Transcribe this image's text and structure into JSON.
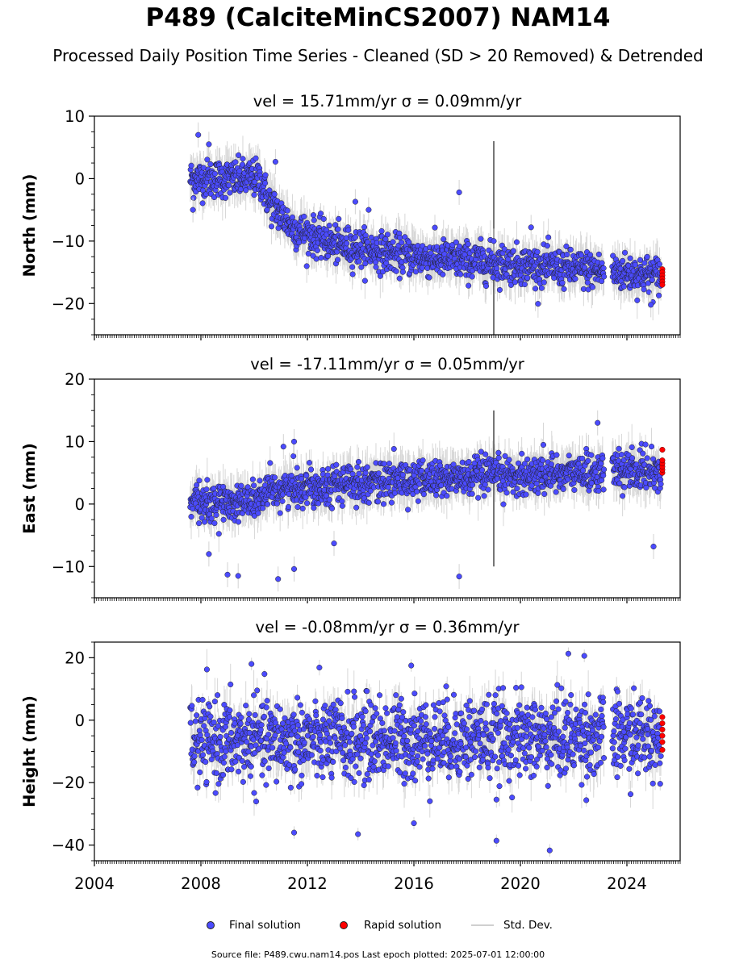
{
  "title": "P489 (CalciteMinCS2007) NAM14",
  "subtitle": "Processed Daily Position Time Series - Cleaned (SD > 20 Removed) & Detrended",
  "colors": {
    "final": "#4b4bff",
    "rapid": "#ff0000",
    "stddev": "#d3d3d3",
    "edge": "#222222"
  },
  "legend": {
    "final": "Final solution",
    "rapid": "Rapid solution",
    "std": "Std. Dev."
  },
  "footnote": "Source file: P489.cwu.nam14.pos  Last epoch plotted: 2025-07-01 12:00:00",
  "chart_data": [
    {
      "type": "scatter",
      "title": "vel = 15.71mm/yr   σ = 0.09mm/yr",
      "ylabel": "North (mm)",
      "xlim": [
        2004,
        2026
      ],
      "ylim": [
        -25,
        10
      ],
      "yticks": [
        10,
        0,
        -10,
        -20
      ],
      "xticks": [
        2004,
        2008,
        2012,
        2016,
        2020,
        2024
      ],
      "grid": false,
      "trend": [
        [
          2007.6,
          0
        ],
        [
          2010.2,
          0
        ],
        [
          2010.6,
          -4
        ],
        [
          2011.5,
          -8
        ],
        [
          2013,
          -10.5
        ],
        [
          2016,
          -12.5
        ],
        [
          2020,
          -13.8
        ],
        [
          2025.3,
          -15.5
        ]
      ],
      "scatter_sd": 1.5,
      "outliers": [
        [
          2007.9,
          7
        ],
        [
          2010.8,
          2.7
        ],
        [
          2013.8,
          -3.7
        ],
        [
          2014.3,
          -5
        ],
        [
          2017.7,
          -2.2
        ],
        [
          2019.0,
          -10
        ],
        [
          2020.4,
          -7.8
        ],
        [
          2024.9,
          -20.2
        ],
        [
          2008.3,
          5.5
        ],
        [
          2007.7,
          -5
        ]
      ],
      "rapid": {
        "x": 2025.33,
        "values": [
          -14.5,
          -15,
          -15.5,
          -16,
          -16.5,
          -17
        ]
      },
      "spike": {
        "x": 2019.0,
        "min": -25,
        "max": 6
      }
    },
    {
      "type": "scatter",
      "title": "vel = -17.11mm/yr   σ = 0.05mm/yr",
      "ylabel": "East (mm)",
      "xlim": [
        2004,
        2026
      ],
      "ylim": [
        -15,
        20
      ],
      "yticks": [
        20,
        10,
        0,
        -10
      ],
      "xticks": [
        2004,
        2008,
        2012,
        2016,
        2020,
        2024
      ],
      "grid": false,
      "trend": [
        [
          2007.6,
          0
        ],
        [
          2010,
          0.5
        ],
        [
          2011,
          2.5
        ],
        [
          2014,
          3.5
        ],
        [
          2018,
          4.2
        ],
        [
          2022,
          5
        ],
        [
          2025.3,
          5.5
        ]
      ],
      "scatter_sd": 1.5,
      "outliers": [
        [
          2008.3,
          -8
        ],
        [
          2009.0,
          -11.3
        ],
        [
          2009.4,
          -11.5
        ],
        [
          2010.9,
          -12
        ],
        [
          2011.5,
          -10.4
        ],
        [
          2013.0,
          -6.3
        ],
        [
          2017.7,
          -11.6
        ],
        [
          2022.9,
          13
        ],
        [
          2025.0,
          -6.8
        ],
        [
          2011.1,
          9.2
        ],
        [
          2011.5,
          10
        ]
      ],
      "rapid": {
        "x": 2025.33,
        "values": [
          5,
          5.5,
          6,
          6.5,
          7,
          8.7
        ]
      },
      "spike": {
        "x": 2019.0,
        "min": -10,
        "max": 15
      }
    },
    {
      "type": "scatter",
      "title": "vel = -0.08mm/yr   σ = 0.36mm/yr",
      "ylabel": "Height (mm)",
      "xlim": [
        2004,
        2026
      ],
      "ylim": [
        -45,
        25
      ],
      "yticks": [
        20,
        0,
        -20,
        -40
      ],
      "xticks": [
        2004,
        2008,
        2012,
        2016,
        2020,
        2024
      ],
      "xticklabels": [
        "2004",
        "2008",
        "2012",
        "2016",
        "2020",
        "2024"
      ],
      "grid": false,
      "trend": [
        [
          2007.6,
          -7
        ],
        [
          2025.3,
          -5
        ]
      ],
      "scatter_sd": 6.5,
      "outliers": [
        [
          2009.9,
          18
        ],
        [
          2011.5,
          -36
        ],
        [
          2013.9,
          -36.5
        ],
        [
          2019.1,
          -38.6
        ],
        [
          2021.1,
          -41.7
        ],
        [
          2021.8,
          21.3
        ],
        [
          2022.4,
          20.6
        ],
        [
          2015.9,
          17.5
        ],
        [
          2016.0,
          -33
        ]
      ],
      "rapid": {
        "x": 2025.33,
        "values": [
          1,
          -1,
          -3,
          -5,
          -7,
          -9.5
        ]
      },
      "spike": null
    }
  ]
}
